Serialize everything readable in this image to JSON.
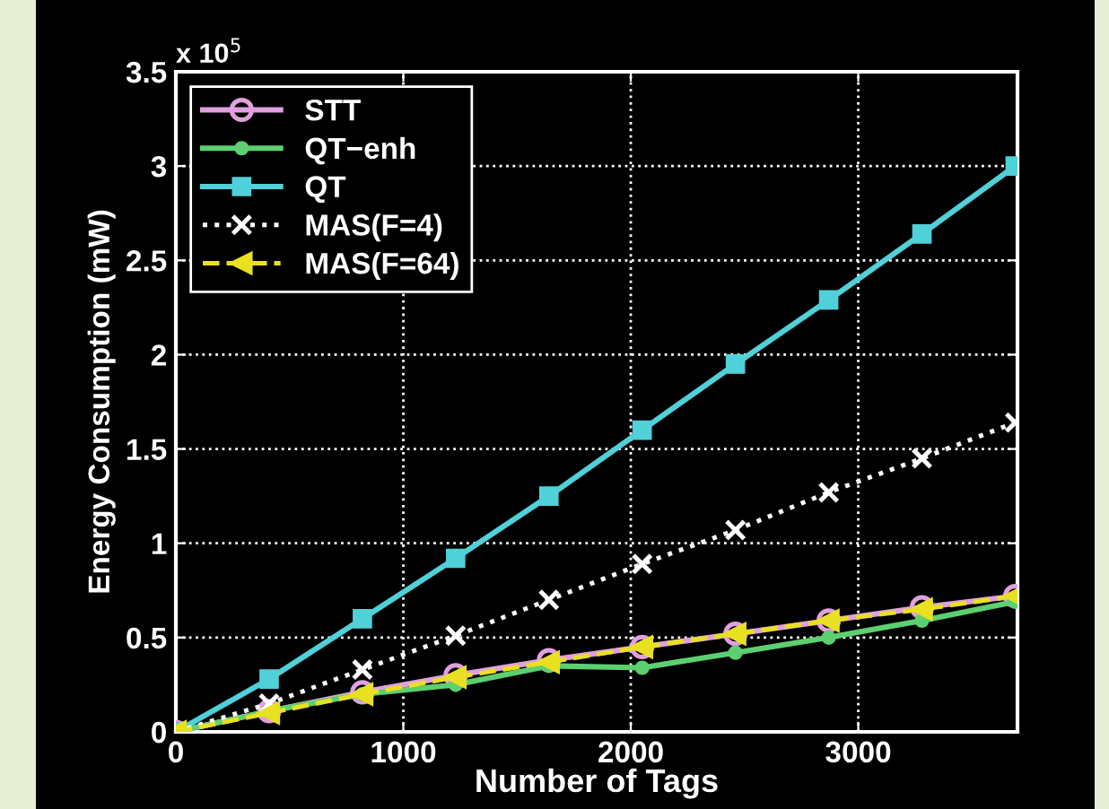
{
  "chart_data": {
    "type": "line",
    "xlabel": "Number of Tags",
    "ylabel": "Energy Consumption (mW)",
    "annotations": [
      "x 10$^{5}$"
    ],
    "x": [
      0,
      410,
      820,
      1230,
      1640,
      2050,
      2460,
      2870,
      3280,
      3690
    ],
    "series": [
      {
        "name": "STT",
        "color": "#e0a0e0",
        "marker": "circle",
        "line_style": "solid",
        "values": [
          0,
          0.11,
          0.21,
          0.3,
          0.38,
          0.45,
          0.52,
          0.59,
          0.66,
          0.72
        ]
      },
      {
        "name": "QT−enh",
        "color": "#5cd070",
        "marker": "circle",
        "line_style": "solid",
        "values": [
          0,
          0.11,
          0.2,
          0.25,
          0.35,
          0.34,
          0.42,
          0.5,
          0.59,
          0.69
        ]
      },
      {
        "name": "QT",
        "color": "#50d0d8",
        "marker": "square",
        "line_style": "solid",
        "values": [
          0,
          0.28,
          0.6,
          0.92,
          1.25,
          1.6,
          1.95,
          2.29,
          2.64,
          3.0
        ]
      },
      {
        "name": "MAS(F=4)",
        "color": "#ffffff",
        "marker": "cross",
        "line_style": "dotted",
        "values": [
          0,
          0.15,
          0.33,
          0.51,
          0.7,
          0.89,
          1.07,
          1.27,
          1.45,
          1.64
        ]
      },
      {
        "name": "MAS(F=64)",
        "color": "#e8e020",
        "marker": "triangle",
        "line_style": "dashed",
        "values": [
          0,
          0.1,
          0.2,
          0.29,
          0.37,
          0.45,
          0.52,
          0.59,
          0.65,
          0.72
        ]
      }
    ],
    "xlim": [
      0,
      3700
    ],
    "xticks": [
      0,
      1000,
      2000,
      3000
    ],
    "ylim": [
      0,
      3.5
    ],
    "yticks": [
      0,
      0.5,
      1,
      1.5,
      2,
      2.5,
      3,
      3.5
    ],
    "grid": true,
    "legend": "top left"
  }
}
